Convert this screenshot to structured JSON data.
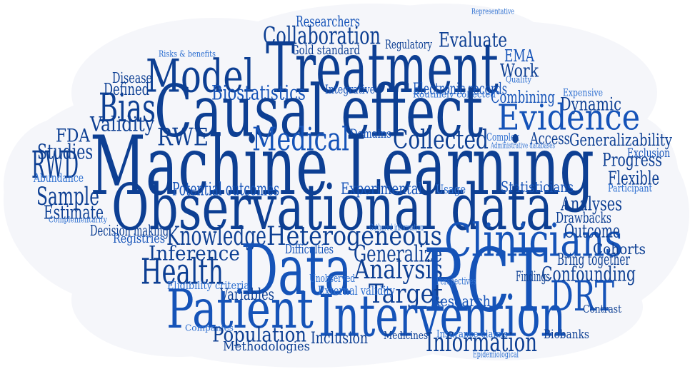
{
  "cloud": {
    "background_color": "#f5f6fa",
    "text_colors": {
      "dark": "#0d3f93",
      "medium": "#1553b8",
      "light": "#2d6fd0"
    },
    "words": [
      "Researchers",
      "Representative",
      "Collaboration",
      "Evaluate",
      "Quality",
      "Risks & benefits",
      "Gold standard",
      "Regulatory",
      "EMA",
      "Treatment",
      "Model",
      "Work",
      "Disease",
      "Expensive",
      "Defined",
      "Biostatistics",
      "Integrative",
      "Electronic records",
      "Routinely collected",
      "Combining",
      "Bias",
      "Causal effect",
      "Dynamic",
      "Validity",
      "Evidence",
      "FDA",
      "RWE",
      "Medical",
      "Domains",
      "Collected",
      "Complex",
      "Access",
      "Generalizability",
      "Administrative databases",
      "Studies",
      "Machine Learning",
      "Exclusion",
      "RWD",
      "Progress",
      "Abundance",
      "Flexible",
      "Potential outcomes",
      "Experimental",
      "Usage",
      "Statisticians",
      "Participant",
      "Sample",
      "Observational data",
      "Analyses",
      "Estimate",
      "Complementarity",
      "Drawbacks",
      "Decision making",
      "Gathered information",
      "Registries",
      "Knowledge",
      "Heterogeneous",
      "Clinicians",
      "Outcome",
      "Inference",
      "Difficulties",
      "Generalize",
      "Cohorts",
      "Data",
      "Bring together",
      "Health",
      "Analysis",
      "RCT",
      "Findings",
      "Unobserved",
      "Confounding",
      "Eligibility criteria",
      "Perspectives",
      "Variables",
      "Target",
      "DRT",
      "External validity",
      "Research",
      "Patient",
      "Intervention",
      "Contrast",
      "Companies",
      "Population",
      "Insurance claims",
      "Biobanks",
      "Inclusion",
      "Medicines",
      "Information",
      "Methodologies",
      "Epidemiological"
    ]
  }
}
